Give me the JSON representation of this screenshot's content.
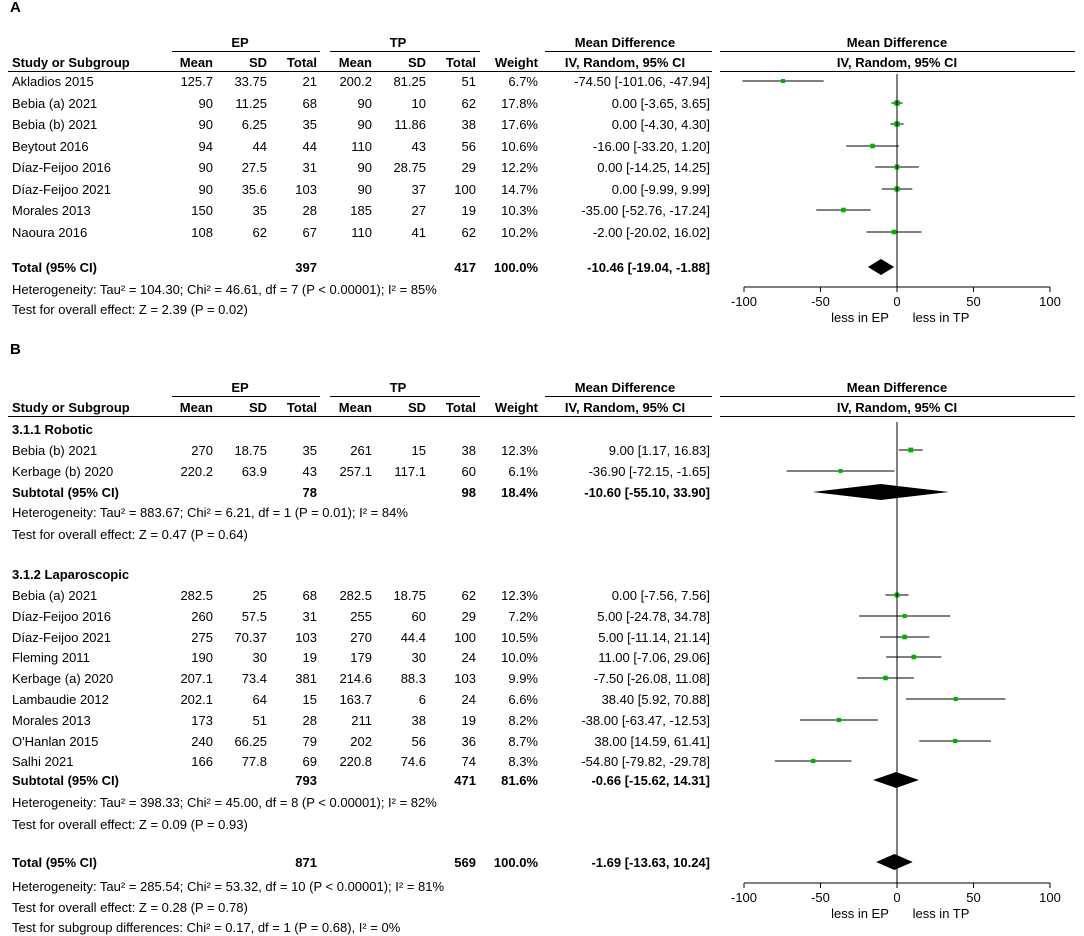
{
  "columns": {
    "study": "Study or Subgroup",
    "mean": "Mean",
    "sd": "SD",
    "total": "Total",
    "weight": "Weight",
    "md": "Mean Difference",
    "md_sub": "IV, Random, 95% CI",
    "ep": "EP",
    "tp": "TP"
  },
  "colors": {
    "point": "#00b200",
    "line": "#000000",
    "diamond": "#000000"
  },
  "panelA": {
    "label": "A",
    "rows": [
      {
        "study": "Akladios 2015",
        "ep_mean": "125.7",
        "ep_sd": "33.75",
        "ep_total": "21",
        "tp_mean": "200.2",
        "tp_sd": "81.25",
        "tp_total": "51",
        "weight": "6.7%",
        "ci": "-74.50 [-101.06, -47.94]"
      },
      {
        "study": "Bebia (a) 2021",
        "ep_mean": "90",
        "ep_sd": "11.25",
        "ep_total": "68",
        "tp_mean": "90",
        "tp_sd": "10",
        "tp_total": "62",
        "weight": "17.8%",
        "ci": "0.00 [-3.65, 3.65]"
      },
      {
        "study": "Bebia (b) 2021",
        "ep_mean": "90",
        "ep_sd": "6.25",
        "ep_total": "35",
        "tp_mean": "90",
        "tp_sd": "11.86",
        "tp_total": "38",
        "weight": "17.6%",
        "ci": "0.00 [-4.30, 4.30]"
      },
      {
        "study": "Beytout 2016",
        "ep_mean": "94",
        "ep_sd": "44",
        "ep_total": "44",
        "tp_mean": "110",
        "tp_sd": "43",
        "tp_total": "56",
        "weight": "10.6%",
        "ci": "-16.00 [-33.20, 1.20]"
      },
      {
        "study": "Díaz-Feijoo 2016",
        "ep_mean": "90",
        "ep_sd": "27.5",
        "ep_total": "31",
        "tp_mean": "90",
        "tp_sd": "28.75",
        "tp_total": "29",
        "weight": "12.2%",
        "ci": "0.00 [-14.25, 14.25]"
      },
      {
        "study": "Díaz-Feijoo 2021",
        "ep_mean": "90",
        "ep_sd": "35.6",
        "ep_total": "103",
        "tp_mean": "90",
        "tp_sd": "37",
        "tp_total": "100",
        "weight": "14.7%",
        "ci": "0.00 [-9.99, 9.99]"
      },
      {
        "study": "Morales 2013",
        "ep_mean": "150",
        "ep_sd": "35",
        "ep_total": "28",
        "tp_mean": "185",
        "tp_sd": "27",
        "tp_total": "19",
        "weight": "10.3%",
        "ci": "-35.00 [-52.76, -17.24]"
      },
      {
        "study": "Naoura 2016",
        "ep_mean": "108",
        "ep_sd": "62",
        "ep_total": "67",
        "tp_mean": "110",
        "tp_sd": "41",
        "tp_total": "62",
        "weight": "10.2%",
        "ci": "-2.00 [-20.02, 16.02]"
      }
    ],
    "total": {
      "label": "Total (95% CI)",
      "ep_total": "397",
      "tp_total": "417",
      "weight": "100.0%",
      "ci": "-10.46 [-19.04, -1.88]"
    },
    "heterogeneity": "Heterogeneity: Tau² = 104.30; Chi² = 46.61, df = 7 (P < 0.00001); I² = 85%",
    "overall": "Test for overall effect: Z = 2.39 (P = 0.02)",
    "axis": {
      "ticks": [
        "-100",
        "-50",
        "0",
        "50",
        "100"
      ],
      "left_label": "less in EP",
      "right_label": "less in TP"
    }
  },
  "panelB": {
    "label": "B",
    "robotic": {
      "title": "3.1.1 Robotic",
      "rows": [
        {
          "study": "Bebia (b) 2021",
          "ep_mean": "270",
          "ep_sd": "18.75",
          "ep_total": "35",
          "tp_mean": "261",
          "tp_sd": "15",
          "tp_total": "38",
          "weight": "12.3%",
          "ci": "9.00 [1.17, 16.83]"
        },
        {
          "study": "Kerbage (b) 2020",
          "ep_mean": "220.2",
          "ep_sd": "63.9",
          "ep_total": "43",
          "tp_mean": "257.1",
          "tp_sd": "117.1",
          "tp_total": "60",
          "weight": "6.1%",
          "ci": "-36.90 [-72.15, -1.65]"
        }
      ],
      "subtotal": {
        "label": "Subtotal (95% CI)",
        "ep_total": "78",
        "tp_total": "98",
        "weight": "18.4%",
        "ci": "-10.60 [-55.10, 33.90]"
      },
      "heterogeneity": "Heterogeneity: Tau² = 883.67; Chi² = 6.21, df = 1 (P = 0.01); I² = 84%",
      "overall": "Test for overall effect: Z = 0.47 (P = 0.64)"
    },
    "laparoscopic": {
      "title": "3.1.2 Laparoscopic",
      "rows": [
        {
          "study": "Bebia (a) 2021",
          "ep_mean": "282.5",
          "ep_sd": "25",
          "ep_total": "68",
          "tp_mean": "282.5",
          "tp_sd": "18.75",
          "tp_total": "62",
          "weight": "12.3%",
          "ci": "0.00 [-7.56, 7.56]"
        },
        {
          "study": "Díaz-Feijoo 2016",
          "ep_mean": "260",
          "ep_sd": "57.5",
          "ep_total": "31",
          "tp_mean": "255",
          "tp_sd": "60",
          "tp_total": "29",
          "weight": "7.2%",
          "ci": "5.00 [-24.78, 34.78]"
        },
        {
          "study": "Díaz-Feijoo 2021",
          "ep_mean": "275",
          "ep_sd": "70.37",
          "ep_total": "103",
          "tp_mean": "270",
          "tp_sd": "44.4",
          "tp_total": "100",
          "weight": "10.5%",
          "ci": "5.00 [-11.14, 21.14]"
        },
        {
          "study": "Fleming 2011",
          "ep_mean": "190",
          "ep_sd": "30",
          "ep_total": "19",
          "tp_mean": "179",
          "tp_sd": "30",
          "tp_total": "24",
          "weight": "10.0%",
          "ci": "11.00 [-7.06, 29.06]"
        },
        {
          "study": "Kerbage (a) 2020",
          "ep_mean": "207.1",
          "ep_sd": "73.4",
          "ep_total": "381",
          "tp_mean": "214.6",
          "tp_sd": "88.3",
          "tp_total": "103",
          "weight": "9.9%",
          "ci": "-7.50 [-26.08, 11.08]"
        },
        {
          "study": "Lambaudie 2012",
          "ep_mean": "202.1",
          "ep_sd": "64",
          "ep_total": "15",
          "tp_mean": "163.7",
          "tp_sd": "6",
          "tp_total": "24",
          "weight": "6.6%",
          "ci": "38.40 [5.92, 70.88]"
        },
        {
          "study": "Morales 2013",
          "ep_mean": "173",
          "ep_sd": "51",
          "ep_total": "28",
          "tp_mean": "211",
          "tp_sd": "38",
          "tp_total": "19",
          "weight": "8.2%",
          "ci": "-38.00 [-63.47, -12.53]"
        },
        {
          "study": "O'Hanlan 2015",
          "ep_mean": "240",
          "ep_sd": "66.25",
          "ep_total": "79",
          "tp_mean": "202",
          "tp_sd": "56",
          "tp_total": "36",
          "weight": "8.7%",
          "ci": "38.00 [14.59, 61.41]"
        },
        {
          "study": "Salhi 2021",
          "ep_mean": "166",
          "ep_sd": "77.8",
          "ep_total": "69",
          "tp_mean": "220.8",
          "tp_sd": "74.6",
          "tp_total": "74",
          "weight": "8.3%",
          "ci": "-54.80 [-79.82, -29.78]"
        }
      ],
      "subtotal": {
        "label": "Subtotal (95% CI)",
        "ep_total": "793",
        "tp_total": "471",
        "weight": "81.6%",
        "ci": "-0.66 [-15.62, 14.31]"
      },
      "heterogeneity": "Heterogeneity: Tau² = 398.33; Chi² = 45.00, df = 8 (P < 0.00001); I² = 82%",
      "overall": "Test for overall effect: Z = 0.09 (P = 0.93)"
    },
    "total": {
      "label": "Total (95% CI)",
      "ep_total": "871",
      "tp_total": "569",
      "weight": "100.0%",
      "ci": "-1.69 [-13.63, 10.24]"
    },
    "heterogeneity": "Heterogeneity: Tau² = 285.54; Chi² = 53.32, df = 10 (P < 0.00001); I² = 81%",
    "overall": "Test for overall effect: Z = 0.28 (P = 0.78)",
    "subgroup_diff": "Test for subgroup differences: Chi² = 0.17, df = 1 (P = 0.68), I² = 0%",
    "axis": {
      "ticks": [
        "-100",
        "-50",
        "0",
        "50",
        "100"
      ],
      "left_label": "less in EP",
      "right_label": "less in TP"
    }
  },
  "chart_data": [
    {
      "type": "forest",
      "title": "A",
      "xlabel": "Mean Difference IV, Random, 95% CI",
      "xlim": [
        -100,
        100
      ],
      "left_label": "less in EP",
      "right_label": "less in TP",
      "studies": [
        {
          "name": "Akladios 2015",
          "md": -74.5,
          "lo": -101.06,
          "hi": -47.94,
          "weight": 6.7
        },
        {
          "name": "Bebia (a) 2021",
          "md": 0.0,
          "lo": -3.65,
          "hi": 3.65,
          "weight": 17.8
        },
        {
          "name": "Bebia (b) 2021",
          "md": 0.0,
          "lo": -4.3,
          "hi": 4.3,
          "weight": 17.6
        },
        {
          "name": "Beytout 2016",
          "md": -16.0,
          "lo": -33.2,
          "hi": 1.2,
          "weight": 10.6
        },
        {
          "name": "Díaz-Feijoo 2016",
          "md": 0.0,
          "lo": -14.25,
          "hi": 14.25,
          "weight": 12.2
        },
        {
          "name": "Díaz-Feijoo 2021",
          "md": 0.0,
          "lo": -9.99,
          "hi": 9.99,
          "weight": 14.7
        },
        {
          "name": "Morales 2013",
          "md": -35.0,
          "lo": -52.76,
          "hi": -17.24,
          "weight": 10.3
        },
        {
          "name": "Naoura 2016",
          "md": -2.0,
          "lo": -20.02,
          "hi": 16.02,
          "weight": 10.2
        }
      ],
      "pooled": {
        "name": "Total (95% CI)",
        "md": -10.46,
        "lo": -19.04,
        "hi": -1.88
      }
    },
    {
      "type": "forest",
      "title": "B",
      "xlabel": "Mean Difference IV, Random, 95% CI",
      "xlim": [
        -100,
        100
      ],
      "left_label": "less in EP",
      "right_label": "less in TP",
      "subgroups": [
        {
          "name": "3.1.1 Robotic",
          "studies": [
            {
              "name": "Bebia (b) 2021",
              "md": 9.0,
              "lo": 1.17,
              "hi": 16.83,
              "weight": 12.3
            },
            {
              "name": "Kerbage (b) 2020",
              "md": -36.9,
              "lo": -72.15,
              "hi": -1.65,
              "weight": 6.1
            }
          ],
          "pooled": {
            "md": -10.6,
            "lo": -55.1,
            "hi": 33.9
          }
        },
        {
          "name": "3.1.2 Laparoscopic",
          "studies": [
            {
              "name": "Bebia (a) 2021",
              "md": 0.0,
              "lo": -7.56,
              "hi": 7.56,
              "weight": 12.3
            },
            {
              "name": "Díaz-Feijoo 2016",
              "md": 5.0,
              "lo": -24.78,
              "hi": 34.78,
              "weight": 7.2
            },
            {
              "name": "Díaz-Feijoo 2021",
              "md": 5.0,
              "lo": -11.14,
              "hi": 21.14,
              "weight": 10.5
            },
            {
              "name": "Fleming 2011",
              "md": 11.0,
              "lo": -7.06,
              "hi": 29.06,
              "weight": 10.0
            },
            {
              "name": "Kerbage (a) 2020",
              "md": -7.5,
              "lo": -26.08,
              "hi": 11.08,
              "weight": 9.9
            },
            {
              "name": "Lambaudie 2012",
              "md": 38.4,
              "lo": 5.92,
              "hi": 70.88,
              "weight": 6.6
            },
            {
              "name": "Morales 2013",
              "md": -38.0,
              "lo": -63.47,
              "hi": -12.53,
              "weight": 8.2
            },
            {
              "name": "O'Hanlan 2015",
              "md": 38.0,
              "lo": 14.59,
              "hi": 61.41,
              "weight": 8.7
            },
            {
              "name": "Salhi 2021",
              "md": -54.8,
              "lo": -79.82,
              "hi": -29.78,
              "weight": 8.3
            }
          ],
          "pooled": {
            "md": -0.66,
            "lo": -15.62,
            "hi": 14.31
          }
        }
      ],
      "pooled": {
        "name": "Total (95% CI)",
        "md": -1.69,
        "lo": -13.63,
        "hi": 10.24
      }
    }
  ]
}
